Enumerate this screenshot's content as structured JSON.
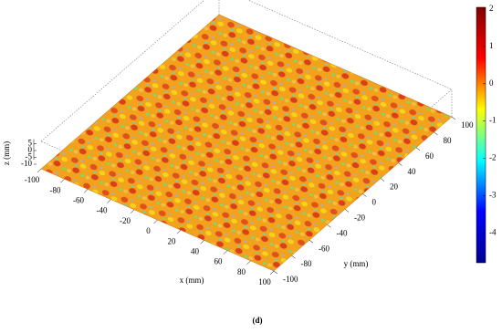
{
  "chart_data": {
    "type": "surface",
    "caption": "(d)",
    "xlabel": "x (mm)",
    "ylabel": "y (mm)",
    "zlabel": "z (mm)",
    "xlim": [
      -100,
      100
    ],
    "xticks": [
      -100,
      -80,
      -60,
      -40,
      -20,
      0,
      20,
      40,
      60,
      80,
      100
    ],
    "ylim": [
      -100,
      100
    ],
    "yticks": [
      -100,
      -80,
      -60,
      -40,
      -20,
      0,
      20,
      40,
      60,
      80,
      100
    ],
    "zlim": [
      -10,
      5
    ],
    "zticks": [
      5,
      0,
      -5,
      -10
    ],
    "clim": [
      -4.8,
      2.05
    ],
    "cticks": [
      2,
      1,
      0,
      -1,
      -2,
      -3,
      -4
    ],
    "colormap": [
      "#00008f",
      "#0000ff",
      "#00ffff",
      "#ffff00",
      "#ff0000",
      "#800000"
    ]
  }
}
